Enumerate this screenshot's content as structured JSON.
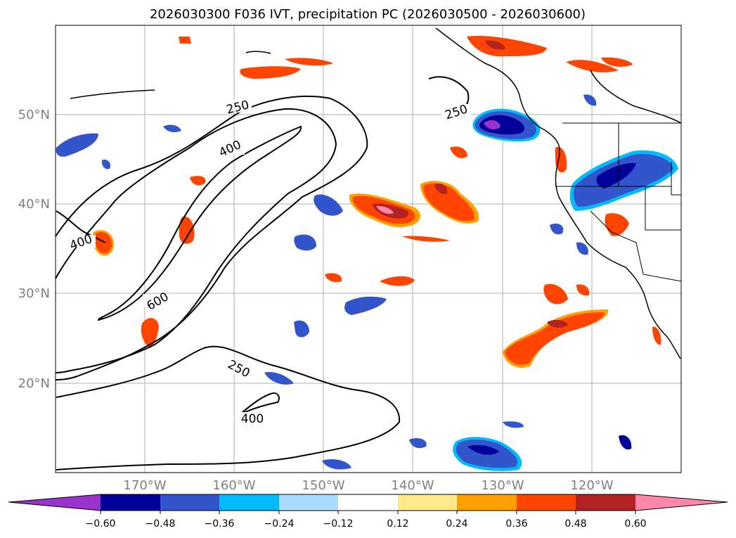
{
  "title": "2026030300 F036 IVT, precipitation PC (2026030500 - 2026030600)",
  "map": {
    "lon_range": [
      -180,
      -110
    ],
    "lat_range": [
      10,
      60
    ],
    "lat_labels": [
      "50°N",
      "40°N",
      "30°N",
      "20°N"
    ],
    "lon_labels": [
      "170°W",
      "160°W",
      "150°W",
      "140°W",
      "130°W",
      "120°W"
    ],
    "ivt_contour_labels": [
      "250",
      "400",
      "250",
      "400",
      "600",
      "250",
      "400"
    ],
    "grid_color": "#b0b0b0"
  },
  "colorbar": {
    "tick_labels": [
      "−0.60",
      "−0.48",
      "−0.36",
      "−0.24",
      "−0.12",
      "0.12",
      "0.24",
      "0.36",
      "0.48",
      "0.60"
    ],
    "colors": [
      "#9933cc",
      "#000099",
      "#3355cc",
      "#00bbff",
      "#aaddff",
      "#ffffff",
      "#ffe88a",
      "#ffa000",
      "#ff4400",
      "#b22222",
      "#ff88aa"
    ]
  },
  "legend_levels": [
    -0.6,
    -0.48,
    -0.36,
    -0.24,
    -0.12,
    0.12,
    0.24,
    0.36,
    0.48,
    0.6
  ]
}
